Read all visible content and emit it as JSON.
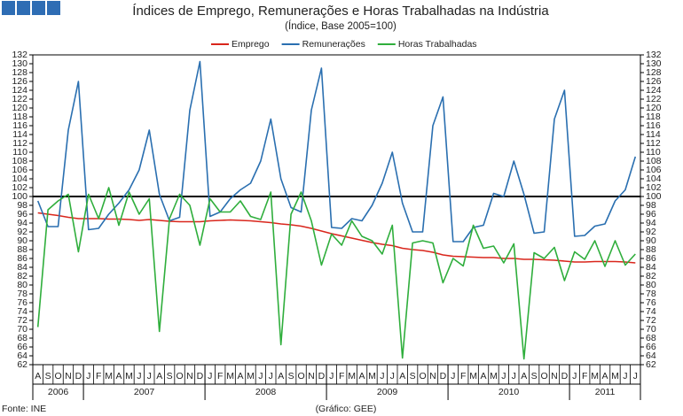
{
  "chart_data": {
    "type": "line",
    "title": "Índices de Emprego, Remunerações e Horas Trabalhadas na Indústria",
    "subtitle": "(Índice, Base 2005=100)",
    "source": "Fonte: INE",
    "credit": "(Gráfico: GEE)",
    "categories": [
      "A",
      "S",
      "O",
      "N",
      "D",
      "J",
      "F",
      "M",
      "A",
      "M",
      "J",
      "J",
      "A",
      "S",
      "O",
      "N",
      "D",
      "J",
      "F",
      "M",
      "A",
      "M",
      "J",
      "J",
      "A",
      "S",
      "O",
      "N",
      "D",
      "J",
      "F",
      "M",
      "A",
      "M",
      "J",
      "J",
      "A",
      "S",
      "O",
      "N",
      "D",
      "J",
      "F",
      "M",
      "A",
      "M",
      "J",
      "J",
      "A",
      "S",
      "O",
      "N",
      "D",
      "J",
      "F",
      "M",
      "A",
      "M",
      "J",
      "J"
    ],
    "years": [
      "2006",
      "2007",
      "2008",
      "2009",
      "2010",
      "2011"
    ],
    "ylim": [
      62,
      132
    ],
    "yticks": [
      62,
      64,
      66,
      68,
      70,
      72,
      74,
      76,
      78,
      80,
      82,
      84,
      86,
      88,
      90,
      92,
      94,
      96,
      98,
      100,
      102,
      104,
      106,
      108,
      110,
      112,
      114,
      116,
      118,
      120,
      122,
      124,
      126,
      128,
      130,
      132
    ],
    "reference_line": 100,
    "series": [
      {
        "name": "Emprego",
        "color": "#d9261c",
        "values": [
          96.3,
          96,
          95.7,
          95.3,
          95,
          95,
          95,
          94.9,
          94.9,
          94.8,
          94.6,
          94.8,
          94.6,
          94.4,
          94.3,
          94.3,
          94.3,
          94.5,
          94.6,
          94.7,
          94.6,
          94.5,
          94.3,
          94.1,
          93.8,
          93.6,
          93.3,
          92.8,
          92.2,
          91.6,
          91.1,
          90.6,
          90.1,
          89.6,
          89.2,
          88.9,
          88.3,
          88,
          87.8,
          87.4,
          86.8,
          86.5,
          86.4,
          86.3,
          86.2,
          86.2,
          86,
          86,
          85.8,
          85.8,
          85.7,
          85.6,
          85.4,
          85.2,
          85.2,
          85.3,
          85.3,
          85.3,
          85.2,
          85
        ]
      },
      {
        "name": "Remunerações",
        "color": "#2a6fb0",
        "values": [
          99,
          93.2,
          93.2,
          115,
          126,
          92.5,
          92.8,
          96,
          98.5,
          101.5,
          106,
          115,
          100.5,
          94.5,
          95.3,
          119.5,
          130.5,
          95.5,
          96.5,
          99.5,
          101.5,
          103,
          108,
          117.5,
          104,
          97.5,
          96.5,
          119.5,
          129,
          93,
          92.8,
          95,
          94.5,
          98,
          103,
          110,
          98.5,
          92,
          92,
          116,
          122.5,
          89.8,
          89.8,
          93,
          93.5,
          100.7,
          100,
          108,
          100.5,
          91.7,
          92,
          117.5,
          124,
          91,
          91.2,
          93.3,
          93.8,
          99,
          101.5,
          109
        ]
      },
      {
        "name": "Horas Trabalhadas",
        "color": "#2fae3c",
        "values": [
          70.5,
          97,
          99,
          100.5,
          87.5,
          100.5,
          95,
          102,
          93.5,
          101,
          96,
          99.5,
          69.5,
          95,
          100.5,
          98,
          89,
          99.5,
          96.5,
          96.5,
          99,
          95.5,
          94.8,
          101,
          66.5,
          96,
          101,
          94.5,
          84.5,
          91.5,
          89,
          94.5,
          91,
          90,
          87,
          93.5,
          63.5,
          89.5,
          90,
          89.5,
          80.5,
          86,
          84.3,
          93.5,
          88.3,
          88.8,
          85,
          89.3,
          63.3,
          87.3,
          86,
          88.5,
          81,
          87.5,
          85.8,
          90,
          84.2,
          90,
          84.5,
          87
        ]
      }
    ]
  }
}
